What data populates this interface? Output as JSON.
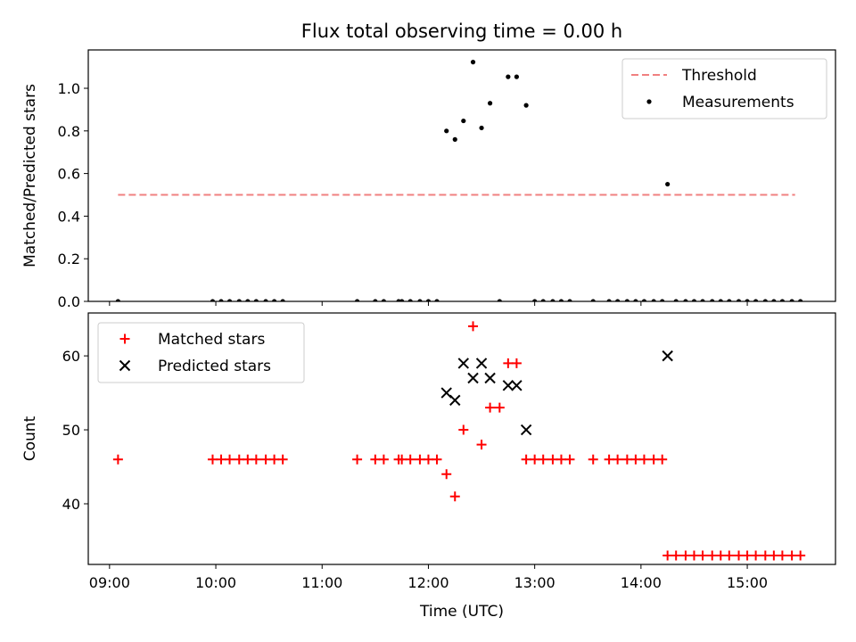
{
  "chart_data": [
    {
      "id": "top",
      "type": "scatter",
      "title": "Flux total observing time = 0.00 h",
      "xlabel": "",
      "ylabel": "Matched/Predicted stars",
      "xlim": [
        8.8,
        15.83
      ],
      "ylim": [
        0.0,
        1.18
      ],
      "yticks": [
        0.0,
        0.2,
        0.4,
        0.6,
        0.8,
        1.0
      ],
      "ytick_labels": [
        "0.0",
        "0.2",
        "0.4",
        "0.6",
        "0.8",
        "1.0"
      ],
      "xticks": [
        9,
        10,
        11,
        12,
        13,
        14,
        15
      ],
      "legend": {
        "position": "upper right",
        "entries": [
          "Threshold",
          "Measurements"
        ]
      },
      "series": [
        {
          "name": "Threshold",
          "kind": "line",
          "style": "dashed",
          "color": "#f08080",
          "x": [
            9.08,
            15.45
          ],
          "y": [
            0.5,
            0.5
          ]
        },
        {
          "name": "Measurements",
          "kind": "scatter",
          "marker": "dot",
          "color": "#000000",
          "x": [
            9.08,
            9.97,
            10.05,
            10.13,
            10.22,
            10.3,
            10.38,
            10.47,
            10.55,
            10.63,
            11.33,
            11.5,
            11.58,
            11.72,
            11.75,
            11.83,
            11.92,
            12.0,
            12.08,
            12.17,
            12.25,
            12.33,
            12.42,
            12.5,
            12.58,
            12.67,
            12.75,
            12.83,
            12.92,
            13.0,
            13.08,
            13.17,
            13.25,
            13.33,
            13.55,
            13.7,
            13.78,
            13.87,
            13.95,
            14.03,
            14.12,
            14.2,
            14.25,
            14.33,
            14.42,
            14.5,
            14.58,
            14.67,
            14.75,
            14.83,
            14.92,
            15.0,
            15.08,
            15.17,
            15.25,
            15.33,
            15.42,
            15.5
          ],
          "y": [
            0.0,
            0.0,
            0.0,
            0.0,
            0.0,
            0.0,
            0.0,
            0.0,
            0.0,
            0.0,
            0.0,
            0.0,
            0.0,
            0.0,
            0.0,
            0.0,
            0.0,
            0.0,
            0.0,
            0.8,
            0.76,
            0.847,
            1.123,
            0.814,
            0.93,
            0.0,
            1.054,
            1.054,
            0.92,
            0.0,
            0.0,
            0.0,
            0.0,
            0.0,
            0.0,
            0.0,
            0.0,
            0.0,
            0.0,
            0.0,
            0.0,
            0.0,
            0.55,
            0.0,
            0.0,
            0.0,
            0.0,
            0.0,
            0.0,
            0.0,
            0.0,
            0.0,
            0.0,
            0.0,
            0.0,
            0.0,
            0.0,
            0.0
          ]
        }
      ]
    },
    {
      "id": "bottom",
      "type": "scatter",
      "title": "",
      "xlabel": "Time (UTC)",
      "ylabel": "Count",
      "xlim": [
        8.8,
        15.83
      ],
      "ylim": [
        31.8,
        65.8
      ],
      "yticks": [
        40,
        50,
        60
      ],
      "ytick_labels": [
        "40",
        "50",
        "60"
      ],
      "xticks": [
        9,
        10,
        11,
        12,
        13,
        14,
        15
      ],
      "xtick_labels": [
        "09:00",
        "10:00",
        "11:00",
        "12:00",
        "13:00",
        "14:00",
        "15:00"
      ],
      "legend": {
        "position": "upper left",
        "entries": [
          "Matched stars",
          "Predicted stars"
        ]
      },
      "series": [
        {
          "name": "Matched stars",
          "kind": "scatter",
          "marker": "plus",
          "color": "#ff0000",
          "x": [
            9.08,
            9.97,
            10.05,
            10.13,
            10.22,
            10.3,
            10.38,
            10.47,
            10.55,
            10.63,
            11.33,
            11.5,
            11.58,
            11.72,
            11.75,
            11.83,
            11.92,
            12.0,
            12.08,
            12.17,
            12.25,
            12.33,
            12.42,
            12.5,
            12.58,
            12.67,
            12.75,
            12.83,
            12.92,
            13.0,
            13.08,
            13.17,
            13.25,
            13.33,
            13.55,
            13.7,
            13.78,
            13.87,
            13.95,
            14.03,
            14.12,
            14.2,
            14.25,
            14.33,
            14.42,
            14.5,
            14.58,
            14.67,
            14.75,
            14.83,
            14.92,
            15.0,
            15.08,
            15.17,
            15.25,
            15.33,
            15.42,
            15.5
          ],
          "y": [
            46,
            46,
            46,
            46,
            46,
            46,
            46,
            46,
            46,
            46,
            46,
            46,
            46,
            46,
            46,
            46,
            46,
            46,
            46,
            44,
            41,
            50,
            64,
            48,
            53,
            53,
            59,
            59,
            46,
            46,
            46,
            46,
            46,
            46,
            46,
            46,
            46,
            46,
            46,
            46,
            46,
            46,
            33,
            33,
            33,
            33,
            33,
            33,
            33,
            33,
            33,
            33,
            33,
            33,
            33,
            33,
            33,
            33
          ]
        },
        {
          "name": "Predicted stars",
          "kind": "scatter",
          "marker": "x",
          "color": "#000000",
          "x": [
            12.17,
            12.25,
            12.33,
            12.42,
            12.5,
            12.58,
            12.75,
            12.83,
            12.92,
            14.25
          ],
          "y": [
            55,
            54,
            59,
            57,
            59,
            57,
            56,
            56,
            50,
            60
          ]
        }
      ]
    }
  ]
}
